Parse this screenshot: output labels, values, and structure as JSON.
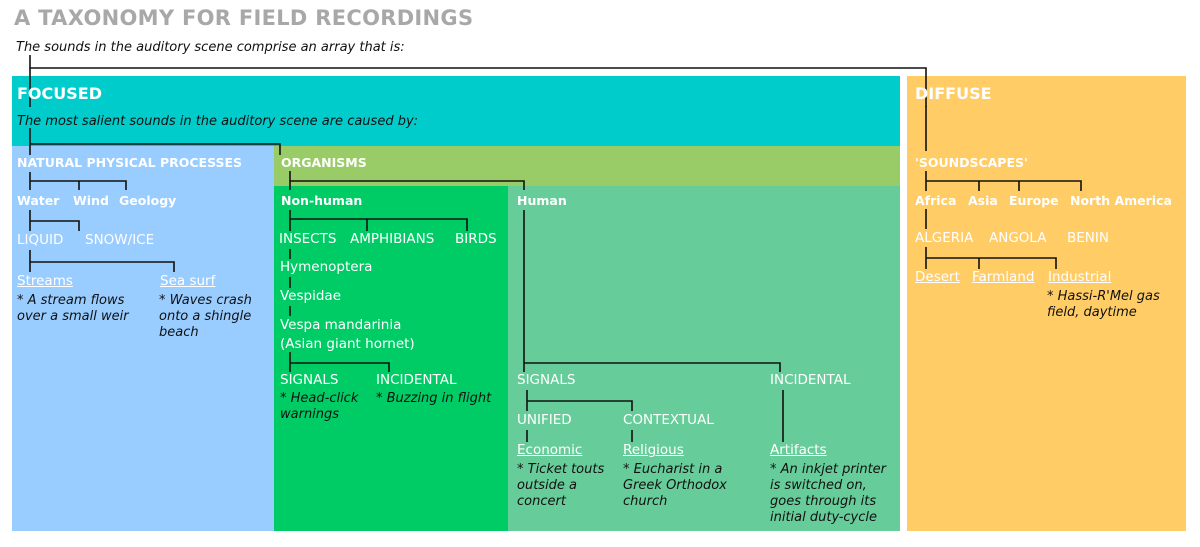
{
  "title": "A TAXONOMY FOR FIELD RECORDINGS",
  "subtitle": "The sounds in the auditory scene comprise an array that is:",
  "colors": {
    "focused": "#00cccc",
    "diffuse": "#ffcc66",
    "natural": "#99ccff",
    "organisms": "#99cc66",
    "nonhuman": "#00cc66",
    "human": "#66cc99",
    "title": "#a8a8a8"
  },
  "focused": {
    "label": "FOCUSED",
    "prompt": "The most salient sounds in the auditory scene are caused by:",
    "natural": {
      "label": "NATURAL PHYSICAL PROCESSES",
      "items": [
        "Water",
        "Wind",
        "Geology"
      ],
      "states": [
        "LIQUID",
        "SNOW/ICE"
      ],
      "examples": [
        {
          "label": "Streams",
          "note": "* A stream flows over a small weir"
        },
        {
          "label": "Sea surf",
          "note": "* Waves crash onto a shingle beach"
        }
      ]
    },
    "organisms": {
      "label": "ORGANISMS",
      "nonhuman": {
        "label": "Non-human",
        "classes": [
          "INSECTS",
          "AMPHIBIANS",
          "BIRDS"
        ],
        "chain": [
          "Hymenoptera",
          "Vespidae",
          "Vespa mandarinia",
          "(Asian giant hornet)"
        ],
        "types": [
          {
            "label": "SIGNALS",
            "note": "* Head-click warnings"
          },
          {
            "label": "INCIDENTAL",
            "note": "* Buzzing in flight"
          }
        ]
      },
      "human": {
        "label": "Human",
        "signals": "SIGNALS",
        "incidental": "INCIDENTAL",
        "subtypes": [
          "UNIFIED",
          "CONTEXTUAL"
        ],
        "examples": [
          {
            "label": "Economic",
            "note": "* Ticket touts outside a concert"
          },
          {
            "label": "Religious",
            "note": "* Eucharist in a Greek Orthodox church"
          },
          {
            "label": "Artifacts",
            "note": "* An inkjet printer is switched on, goes through its initial duty-cycle"
          }
        ]
      }
    }
  },
  "diffuse": {
    "label": "DIFFUSE",
    "soundscapes": "'SOUNDSCAPES'",
    "continents": [
      "Africa",
      "Asia",
      "Europe",
      "North America"
    ],
    "countries": [
      "ALGERIA",
      "ANGOLA",
      "BENIN"
    ],
    "examples": [
      "Desert",
      "Farmland",
      "Industrial"
    ],
    "note": "* Hassi-R'Mel gas field, daytime"
  }
}
